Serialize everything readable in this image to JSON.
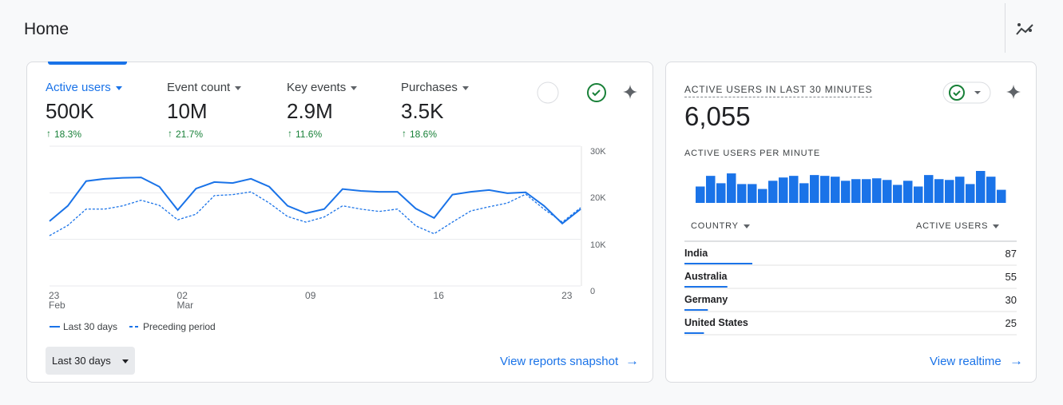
{
  "header": {
    "title": "Home"
  },
  "overview": {
    "metrics": [
      {
        "label": "Active users",
        "value": "500K",
        "change": "18.3%"
      },
      {
        "label": "Event count",
        "value": "10M",
        "change": "21.7%"
      },
      {
        "label": "Key events",
        "value": "2.9M",
        "change": "11.6%"
      },
      {
        "label": "Purchases",
        "value": "3.5K",
        "change": "18.6%"
      }
    ],
    "chart_data": {
      "type": "line",
      "categories": [
        "23\nFeb",
        null,
        null,
        null,
        null,
        null,
        null,
        "02\nMar",
        null,
        null,
        null,
        null,
        null,
        null,
        "09",
        null,
        null,
        null,
        null,
        null,
        null,
        "16",
        null,
        null,
        null,
        null,
        null,
        null,
        "23",
        null
      ],
      "series": [
        {
          "name": "Last 30 days",
          "color": "#1a73e8",
          "style": "solid",
          "values": [
            13900,
            17200,
            22500,
            23000,
            23200,
            23300,
            21300,
            16300,
            20900,
            22300,
            22100,
            23000,
            21300,
            17200,
            15600,
            16500,
            20800,
            20400,
            20200,
            20200,
            16600,
            14600,
            19600,
            20200,
            20600,
            19900,
            20100,
            17200,
            13400,
            16500
          ]
        },
        {
          "name": "Preceding period",
          "color": "#1a73e8",
          "style": "dashed",
          "values": [
            10800,
            13000,
            16500,
            16500,
            17200,
            18400,
            17300,
            14200,
            15400,
            19400,
            19600,
            20200,
            17800,
            14900,
            13700,
            14800,
            17200,
            16500,
            16000,
            16500,
            12900,
            11200,
            13700,
            16100,
            17000,
            17800,
            19700,
            16500,
            13700,
            16800
          ]
        }
      ],
      "ylim": [
        0,
        30000
      ],
      "yticks": [
        0,
        {
          "value": 10000,
          "label": "10K"
        },
        {
          "value": 20000,
          "label": "20K"
        },
        {
          "value": 30000,
          "label": "30K"
        }
      ],
      "grid": true
    },
    "date_range": "Last 30 days",
    "link": "View reports snapshot"
  },
  "realtime": {
    "title": "ACTIVE USERS IN LAST 30 MINUTES",
    "total": "6,055",
    "per_minute_title": "ACTIVE USERS PER MINUTE",
    "chart_data": {
      "type": "bar",
      "color": "#1a73e8",
      "values": [
        140,
        231,
        168,
        252,
        161,
        161,
        119,
        189,
        217,
        231,
        168,
        238,
        231,
        224,
        189,
        203,
        203,
        210,
        196,
        154,
        189,
        140,
        238,
        203,
        196,
        224,
        161,
        273,
        224,
        112
      ]
    },
    "table": {
      "columns": [
        "COUNTRY",
        "ACTIVE USERS"
      ],
      "rows": [
        [
          "India",
          87
        ],
        [
          "Australia",
          55
        ],
        [
          "Germany",
          30
        ],
        [
          "United States",
          25
        ]
      ],
      "bar_color": "#1a73e8"
    },
    "link": "View realtime"
  }
}
